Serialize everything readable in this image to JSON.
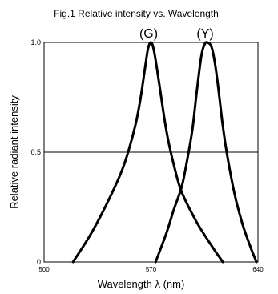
{
  "chart_data": {
    "type": "line",
    "title": "Fig.1 Relative intensity vs. Wavelength",
    "xlabel": "Wavelength λ  (nm)",
    "ylabel": "Relative radiant intensity",
    "xlim": [
      500,
      640
    ],
    "ylim": [
      0,
      1.0
    ],
    "x_ticks": [
      {
        "value": 500,
        "label": "500"
      },
      {
        "value": 570,
        "label": "570"
      },
      {
        "value": 640,
        "label": "640"
      }
    ],
    "y_ticks": [
      {
        "value": 0,
        "label": "0"
      },
      {
        "value": 0.5,
        "label": "0.5"
      },
      {
        "value": 1.0,
        "label": "1.0"
      }
    ],
    "gridlines": {
      "x": [
        570
      ],
      "y": [
        0.5
      ]
    },
    "line_color": "#000000",
    "series": [
      {
        "name": "(G)",
        "x": [
          519,
          530,
          540,
          550,
          555,
          560,
          563,
          566,
          568,
          570,
          572,
          575,
          580,
          585,
          590,
          600,
          610,
          617
        ],
        "y": [
          0,
          0.12,
          0.25,
          0.4,
          0.5,
          0.63,
          0.74,
          0.88,
          0.97,
          1.0,
          0.96,
          0.83,
          0.6,
          0.44,
          0.32,
          0.18,
          0.07,
          0
        ]
      },
      {
        "name": "(Y)",
        "x": [
          573,
          580,
          585,
          590,
          593,
          597,
          600,
          603,
          605,
          607,
          610,
          613,
          617,
          620,
          625,
          630,
          635,
          639
        ],
        "y": [
          0,
          0.13,
          0.24,
          0.34,
          0.44,
          0.6,
          0.78,
          0.94,
          0.99,
          1.0,
          0.97,
          0.85,
          0.62,
          0.48,
          0.3,
          0.17,
          0.07,
          0
        ]
      }
    ]
  }
}
